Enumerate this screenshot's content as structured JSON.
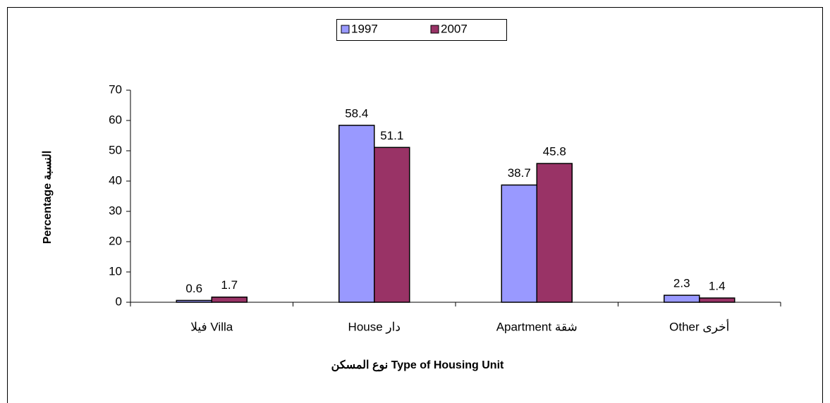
{
  "chart_data": {
    "type": "bar",
    "categories": [
      "فيلا Villa",
      "House دار",
      "Apartment شقة",
      "Other أخرى"
    ],
    "series": [
      {
        "name": "1997",
        "color": "#9999ff",
        "values": [
          0.6,
          58.4,
          38.7,
          2.3
        ]
      },
      {
        "name": "2007",
        "color": "#993366",
        "values": [
          1.7,
          51.1,
          45.8,
          1.4
        ]
      }
    ],
    "ylim": [
      0,
      70
    ],
    "yticks": [
      0,
      10,
      20,
      30,
      40,
      50,
      60,
      70
    ],
    "ylabel": "Percentage النسبة",
    "xlabel": "نوع المسكن Type of Housing Unit",
    "legend": "top"
  }
}
